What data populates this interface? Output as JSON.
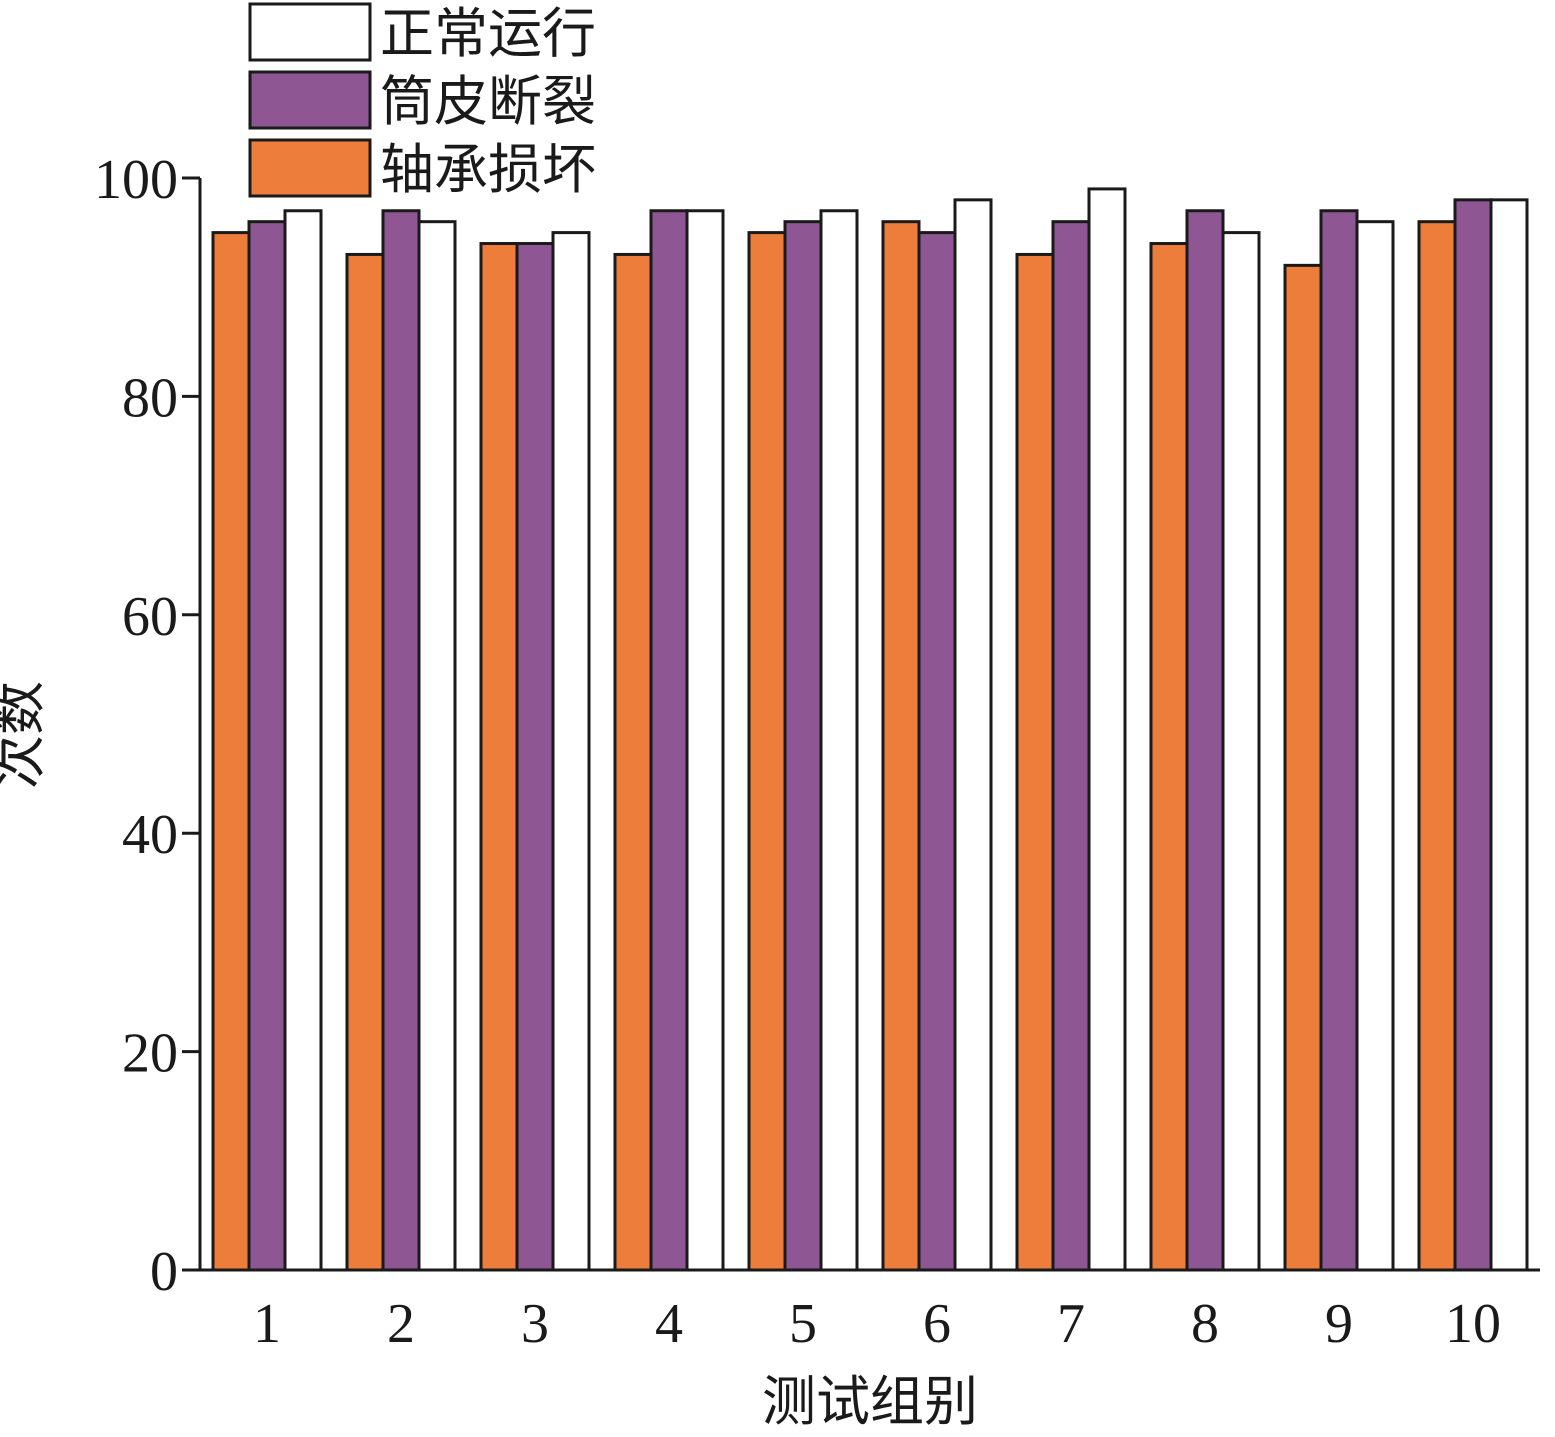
{
  "chart_data": {
    "type": "bar",
    "xlabel": "测试组别",
    "ylabel": "次数",
    "ylim": [
      0,
      100
    ],
    "yticks": [
      0,
      20,
      40,
      60,
      80,
      100
    ],
    "categories": [
      "1",
      "2",
      "3",
      "4",
      "5",
      "6",
      "7",
      "8",
      "9",
      "10"
    ],
    "grid": false,
    "legend_position": "top-left",
    "series": [
      {
        "name": "轴承损坏",
        "color": "#ED7D3A",
        "values": [
          95,
          93,
          94,
          93,
          95,
          96,
          93,
          94,
          92,
          96
        ]
      },
      {
        "name": "筒皮断裂",
        "color": "#8E5794",
        "values": [
          96,
          97,
          94,
          97,
          96,
          95,
          96,
          97,
          97,
          98
        ]
      },
      {
        "name": "正常运行",
        "color": "#FFFFFF",
        "values": [
          97,
          96,
          95,
          97,
          97,
          98,
          99,
          95,
          96,
          98
        ]
      }
    ],
    "legend_order": [
      "正常运行",
      "筒皮断裂",
      "轴承损坏"
    ]
  }
}
